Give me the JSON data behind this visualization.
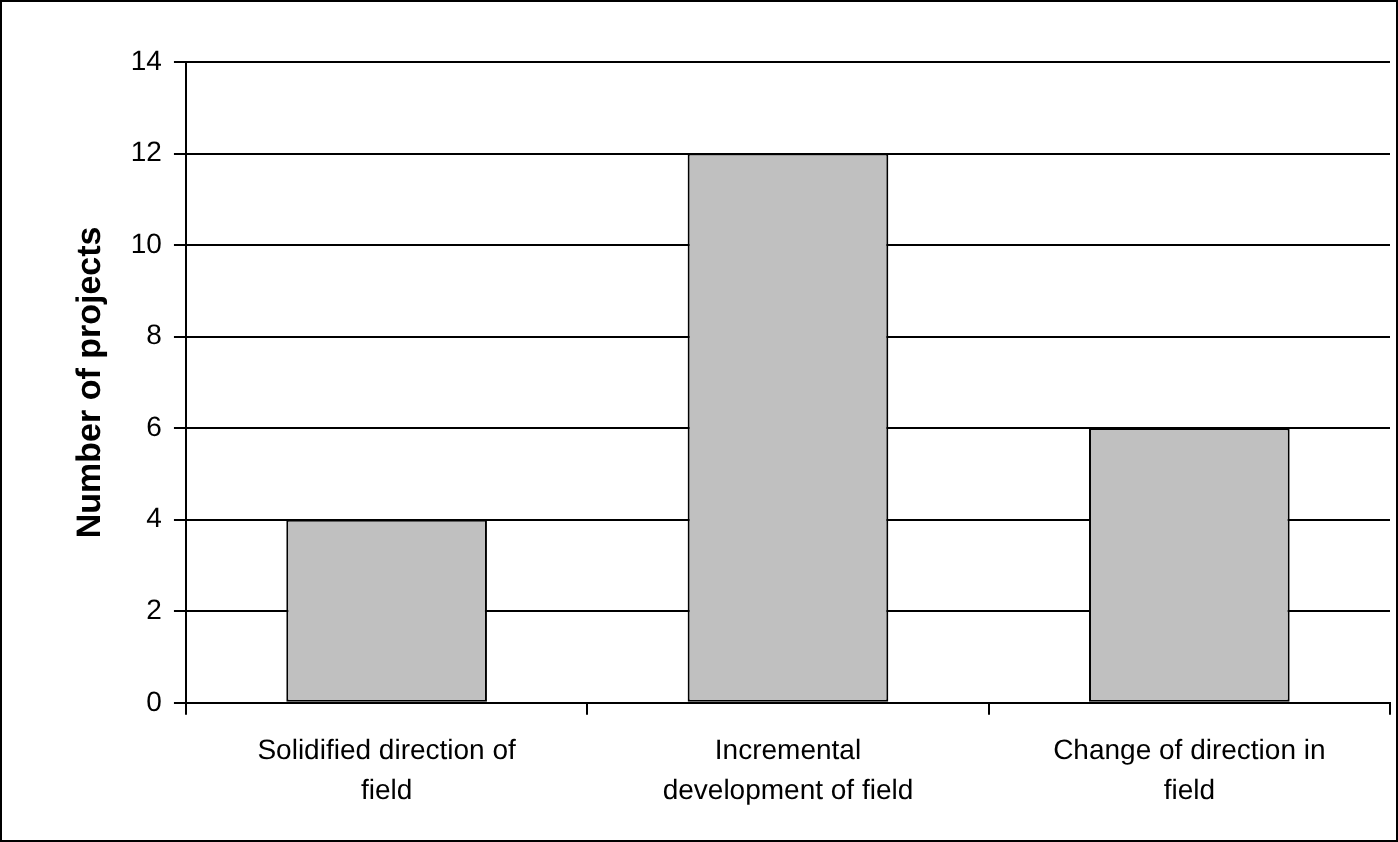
{
  "chart_data": {
    "type": "bar",
    "ylabel": "Number of projects",
    "categories": [
      "Solidified direction of field",
      "Incremental development of field",
      "Change of direction in field"
    ],
    "values": [
      4,
      12,
      6
    ],
    "color": "#c0c0c0",
    "ylim": [
      0,
      14
    ],
    "yticks": [
      0,
      2,
      4,
      6,
      8,
      10,
      12,
      14
    ],
    "grid": "y",
    "legend": false
  }
}
